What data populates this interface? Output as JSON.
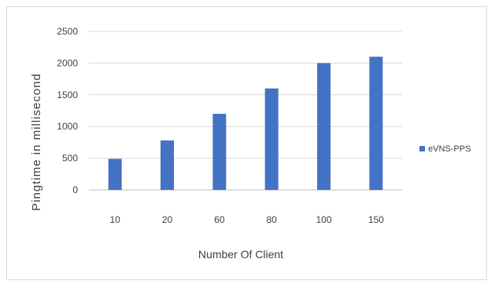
{
  "chart_data": {
    "type": "bar",
    "categories": [
      "10",
      "20",
      "60",
      "80",
      "100",
      "150"
    ],
    "series": [
      {
        "name": "eVNS-PPS",
        "values": [
          490,
          780,
          1200,
          1600,
          2000,
          2100
        ]
      }
    ],
    "title": "",
    "xlabel": "Number Of Client",
    "ylabel": "Pingtime in millisecond",
    "ylim": [
      0,
      2500
    ],
    "yticks": [
      0,
      500,
      1000,
      1500,
      2000,
      2500
    ],
    "grid": true,
    "legend": "right",
    "bar_color": "#4472c4"
  }
}
